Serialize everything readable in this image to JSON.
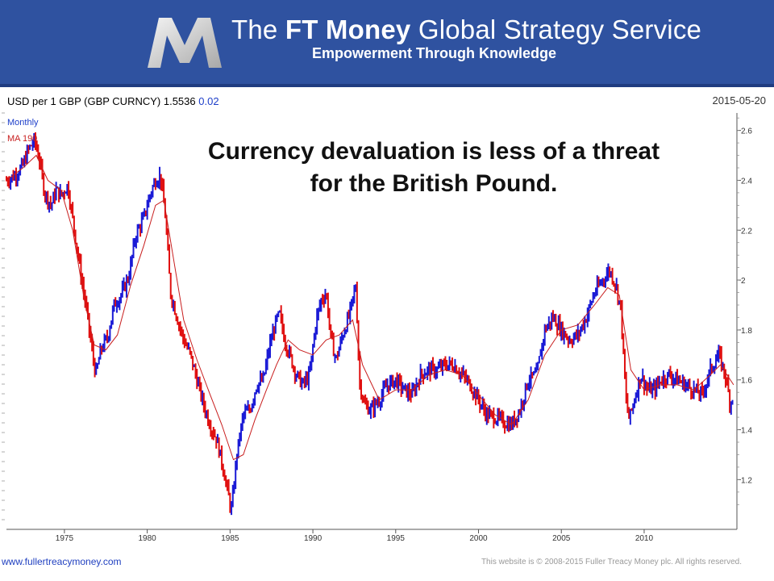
{
  "header": {
    "brand_title_pre": "The",
    "brand_title_bold": "FT Money",
    "brand_title_post": "Global Strategy Service",
    "tagline": "Empowerment Through Knowledge"
  },
  "chart_header": {
    "label": "USD per 1 GBP (GBP CURNCY)",
    "last": "1.5536",
    "change": "0.02",
    "date": "2015-05-20"
  },
  "footer": {
    "url": "www.fullertreacymoney.com",
    "copyright": "This website is © 2008-2015 Fuller Treacy Money plc. All rights reserved."
  },
  "colors": {
    "banner": "#2f52a0",
    "up_bar": "#1b1bd6",
    "down_bar": "#e01010",
    "moving_average": "#c81e1e",
    "change_text": "#1d3ec9"
  },
  "chart_data": {
    "type": "line",
    "title": "Currency devaluation is less of a threat for the British Pound.",
    "title_lines": [
      "Currency devaluation is less of a threat",
      "for the British Pound."
    ],
    "legend": [
      "Monthly",
      "MA 190"
    ],
    "series": [
      {
        "name": "Monthly",
        "x": [
          1971.5,
          1972.0,
          1972.5,
          1972.8,
          1973.2,
          1973.5,
          1973.8,
          1974.2,
          1974.5,
          1974.8,
          1975.2,
          1975.6,
          1976.0,
          1976.4,
          1976.7,
          1976.9,
          1977.2,
          1977.6,
          1978.0,
          1978.5,
          1978.9,
          1979.3,
          1979.8,
          1980.2,
          1980.5,
          1980.8,
          1981.1,
          1981.4,
          1981.8,
          1982.2,
          1982.6,
          1983.0,
          1983.4,
          1983.8,
          1984.2,
          1984.6,
          1985.0,
          1985.1,
          1985.4,
          1985.8,
          1986.2,
          1986.6,
          1987.0,
          1987.4,
          1987.8,
          1988.0,
          1988.3,
          1988.7,
          1989.0,
          1989.4,
          1989.8,
          1990.2,
          1990.5,
          1990.8,
          1991.1,
          1991.4,
          1991.8,
          1992.2,
          1992.6,
          1992.8,
          1993.1,
          1993.5,
          1994.0,
          1994.5,
          1995.0,
          1995.5,
          1996.0,
          1996.5,
          1997.0,
          1997.5,
          1998.0,
          1998.5,
          1999.0,
          1999.5,
          2000.0,
          2000.5,
          2001.0,
          2001.5,
          2002.0,
          2002.5,
          2003.0,
          2003.5,
          2004.0,
          2004.5,
          2005.0,
          2005.5,
          2006.0,
          2006.5,
          2007.0,
          2007.5,
          2007.9,
          2008.3,
          2008.6,
          2008.9,
          2009.1,
          2009.4,
          2009.8,
          2010.2,
          2010.6,
          2011.0,
          2011.5,
          2012.0,
          2012.5,
          2013.0,
          2013.5,
          2014.0,
          2014.5,
          2014.9,
          2015.2,
          2015.4
        ],
        "y": [
          2.4,
          2.42,
          2.46,
          2.52,
          2.56,
          2.48,
          2.35,
          2.3,
          2.36,
          2.34,
          2.38,
          2.2,
          2.02,
          1.85,
          1.7,
          1.62,
          1.72,
          1.77,
          1.9,
          1.95,
          2.02,
          2.18,
          2.25,
          2.35,
          2.4,
          2.42,
          2.25,
          1.95,
          1.85,
          1.76,
          1.7,
          1.6,
          1.5,
          1.42,
          1.36,
          1.24,
          1.1,
          1.08,
          1.3,
          1.46,
          1.48,
          1.58,
          1.6,
          1.74,
          1.84,
          1.86,
          1.76,
          1.68,
          1.62,
          1.58,
          1.62,
          1.84,
          1.92,
          1.95,
          1.76,
          1.68,
          1.78,
          1.86,
          1.98,
          1.6,
          1.5,
          1.48,
          1.52,
          1.58,
          1.6,
          1.56,
          1.54,
          1.62,
          1.64,
          1.64,
          1.66,
          1.66,
          1.62,
          1.58,
          1.52,
          1.46,
          1.45,
          1.43,
          1.42,
          1.48,
          1.6,
          1.62,
          1.8,
          1.85,
          1.8,
          1.76,
          1.78,
          1.85,
          1.95,
          2.0,
          2.04,
          1.98,
          1.88,
          1.52,
          1.44,
          1.52,
          1.62,
          1.56,
          1.56,
          1.6,
          1.62,
          1.6,
          1.58,
          1.56,
          1.54,
          1.64,
          1.7,
          1.62,
          1.5,
          1.55
        ]
      },
      {
        "name": "MA 190",
        "x": [
          1971.5,
          1972.5,
          1973.3,
          1974.0,
          1974.8,
          1975.5,
          1976.2,
          1976.8,
          1977.5,
          1978.2,
          1979.0,
          1979.8,
          1980.5,
          1981.0,
          1981.6,
          1982.2,
          1983.0,
          1983.8,
          1984.5,
          1985.2,
          1985.8,
          1986.5,
          1987.2,
          1987.8,
          1988.5,
          1989.2,
          1990.0,
          1990.8,
          1991.6,
          1992.4,
          1993.0,
          1994.0,
          1995.0,
          1996.0,
          1997.0,
          1998.0,
          1999.0,
          2000.0,
          2001.0,
          2002.0,
          2003.0,
          2004.0,
          2005.0,
          2006.0,
          2007.0,
          2007.8,
          2008.5,
          2009.2,
          2010.0,
          2011.0,
          2012.0,
          2013.0,
          2014.0,
          2014.6,
          2015.4
        ],
        "y": [
          2.4,
          2.45,
          2.5,
          2.4,
          2.36,
          2.2,
          1.92,
          1.74,
          1.72,
          1.78,
          1.98,
          2.14,
          2.3,
          2.32,
          2.08,
          1.84,
          1.68,
          1.54,
          1.42,
          1.28,
          1.3,
          1.44,
          1.56,
          1.66,
          1.76,
          1.72,
          1.7,
          1.76,
          1.78,
          1.84,
          1.66,
          1.52,
          1.56,
          1.56,
          1.62,
          1.64,
          1.62,
          1.54,
          1.46,
          1.42,
          1.52,
          1.7,
          1.8,
          1.82,
          1.9,
          1.97,
          1.94,
          1.64,
          1.56,
          1.58,
          1.58,
          1.56,
          1.62,
          1.66,
          1.58
        ]
      }
    ],
    "x_ticks": [
      1975,
      1980,
      1985,
      1990,
      1995,
      2000,
      2005,
      2010
    ],
    "y_ticks": [
      1.2,
      1.4,
      1.6,
      1.8,
      2.0,
      2.2,
      2.4,
      2.6
    ],
    "y_tick_labels": [
      "1.2",
      "1.4",
      "1.6",
      "1.8",
      "2",
      "2.2",
      "2.4",
      "2.6"
    ],
    "xlim": [
      1971.5,
      2015.6
    ],
    "ylim": [
      1.02,
      2.67
    ],
    "y_axis_side": "right",
    "grid": false,
    "legend_position": "top-left"
  }
}
